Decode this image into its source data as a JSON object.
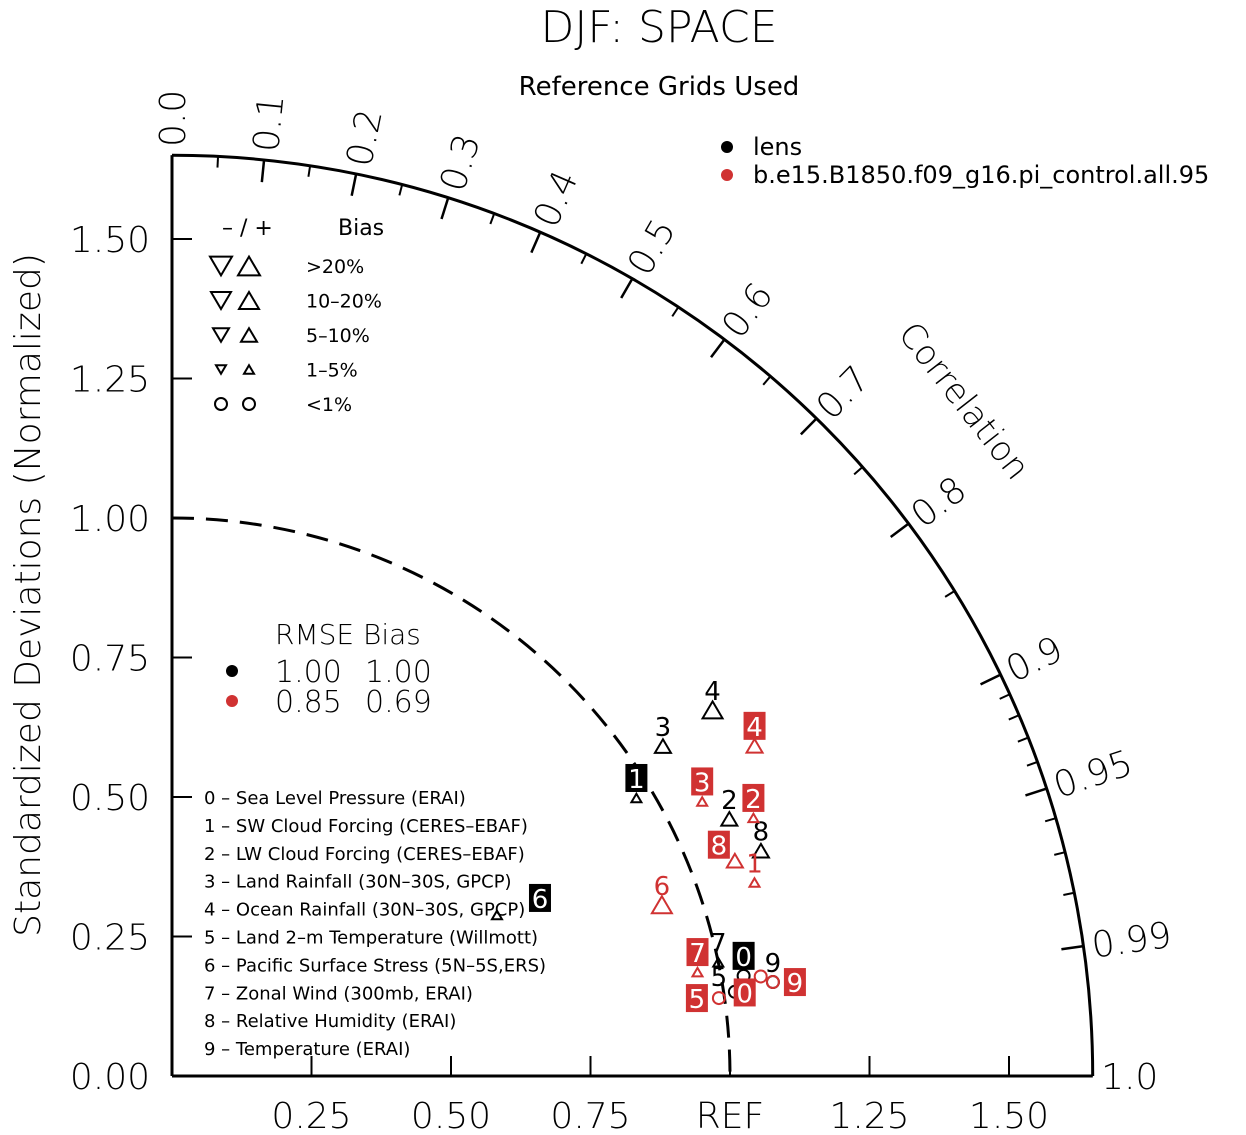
{
  "chart_data": {
    "type": "scatter",
    "diagram": "taylor",
    "title": "DJF: SPACE",
    "subtitle": "Reference Grids Used",
    "ylabel": "Standardized Deviations (Normalized)",
    "arc_label": "Correlation",
    "std_range": [
      0,
      1.65
    ],
    "reference_std": 1.0,
    "y_ticks": [
      "0.00",
      "0.25",
      "0.50",
      "0.75",
      "1.00",
      "1.25",
      "1.50"
    ],
    "x_ticks": [
      "0.25",
      "0.50",
      "0.75",
      "REF",
      "1.25",
      "1.50"
    ],
    "correlation_ticks": [
      "0.0",
      "0.1",
      "0.2",
      "0.3",
      "0.4",
      "0.5",
      "0.6",
      "0.7",
      "0.8",
      "0.9",
      "0.95",
      "0.99",
      "1.0"
    ],
    "series": [
      {
        "name": "lens",
        "color": "#000000",
        "points": [
          {
            "id": "0",
            "std": 1.04,
            "corr": 0.985,
            "marker": "circle",
            "bias": "<1%",
            "boxed": true
          },
          {
            "id": "1",
            "std": 0.97,
            "corr": 0.858,
            "marker": "up",
            "bias": "1-5%",
            "boxed": true
          },
          {
            "id": "2",
            "std": 1.1,
            "corr": 0.908,
            "marker": "up",
            "bias": "5-10%",
            "boxed": false
          },
          {
            "id": "3",
            "std": 1.06,
            "corr": 0.83,
            "marker": "up",
            "bias": "5-10%",
            "boxed": false
          },
          {
            "id": "4",
            "std": 1.17,
            "corr": 0.828,
            "marker": "up",
            "bias": "10-20%",
            "boxed": false
          },
          {
            "id": "5",
            "std": 1.02,
            "corr": 0.989,
            "marker": "circle",
            "bias": "<1%",
            "boxed": false
          },
          {
            "id": "6",
            "std": 0.65,
            "corr": 0.896,
            "marker": "up",
            "bias": "1-5%",
            "boxed": true
          },
          {
            "id": "7",
            "std": 1.0,
            "corr": 0.979,
            "marker": "up",
            "bias": "1-5%",
            "boxed": false
          },
          {
            "id": "8",
            "std": 1.13,
            "corr": 0.934,
            "marker": "up",
            "bias": "5-10%",
            "boxed": false
          },
          {
            "id": "9",
            "std": 1.09,
            "corr": 0.988,
            "marker": "circle",
            "bias": "<1%",
            "boxed": false
          }
        ]
      },
      {
        "name": "b.e15.B1850.f09_g16.pi_control.all.95",
        "color": "#d03232",
        "points": [
          {
            "id": "0",
            "std": 1.07,
            "corr": 0.986,
            "marker": "circle",
            "bias": "<1%",
            "boxed": true
          },
          {
            "id": "1",
            "std": 1.1,
            "corr": 0.949,
            "marker": "up",
            "bias": "1-5%",
            "boxed": false
          },
          {
            "id": "2",
            "std": 1.14,
            "corr": 0.914,
            "marker": "up",
            "bias": "1-5%",
            "boxed": true
          },
          {
            "id": "3",
            "std": 1.07,
            "corr": 0.888,
            "marker": "up",
            "bias": "1-5%",
            "boxed": true
          },
          {
            "id": "4",
            "std": 1.2,
            "corr": 0.87,
            "marker": "up",
            "bias": "5-10%",
            "boxed": true
          },
          {
            "id": "5",
            "std": 0.99,
            "corr": 0.99,
            "marker": "circle",
            "bias": "<1%",
            "boxed": true
          },
          {
            "id": "6",
            "std": 0.93,
            "corr": 0.944,
            "marker": "up",
            "bias": "10-20%",
            "boxed": false
          },
          {
            "id": "7",
            "std": 0.96,
            "corr": 0.981,
            "marker": "up",
            "bias": "1-5%",
            "boxed": true
          },
          {
            "id": "8",
            "std": 1.08,
            "corr": 0.934,
            "marker": "up",
            "bias": "5-10%",
            "boxed": true
          },
          {
            "id": "9",
            "std": 1.09,
            "corr": 0.988,
            "marker": "circle",
            "bias": "<1%",
            "boxed": true
          }
        ]
      }
    ],
    "legend": {
      "placement": "top-right",
      "entries": [
        "lens",
        "b.e15.B1850.f09_g16.pi_control.all.95"
      ]
    },
    "bias_legend": {
      "header_sign": "– / +",
      "header_label": "Bias",
      "rows": [
        ">20%",
        "10–20%",
        "5–10%",
        "1–5%",
        "<1%"
      ]
    },
    "rmse_legend": {
      "header": "RMSE Bias",
      "rows": [
        {
          "rmse": "1.00",
          "bias": "1.00",
          "color": "#000000"
        },
        {
          "rmse": "0.85",
          "bias": "0.69",
          "color": "#d03232"
        }
      ]
    },
    "variables": [
      "0 – Sea Level Pressure (ERAI)",
      "1 – SW Cloud Forcing (CERES–EBAF)",
      "2 – LW Cloud Forcing (CERES–EBAF)",
      "3 – Land Rainfall (30N–30S, GPCP)",
      "4 – Ocean Rainfall (30N–30S, GPCP)",
      "5 – Land 2–m Temperature (Willmott)",
      "6 – Pacific Surface Stress (5N–5S,ERS)",
      "7 – Zonal Wind (300mb, ERAI)",
      "8 – Relative Humidity (ERAI)",
      "9 – Temperature (ERAI)"
    ]
  }
}
